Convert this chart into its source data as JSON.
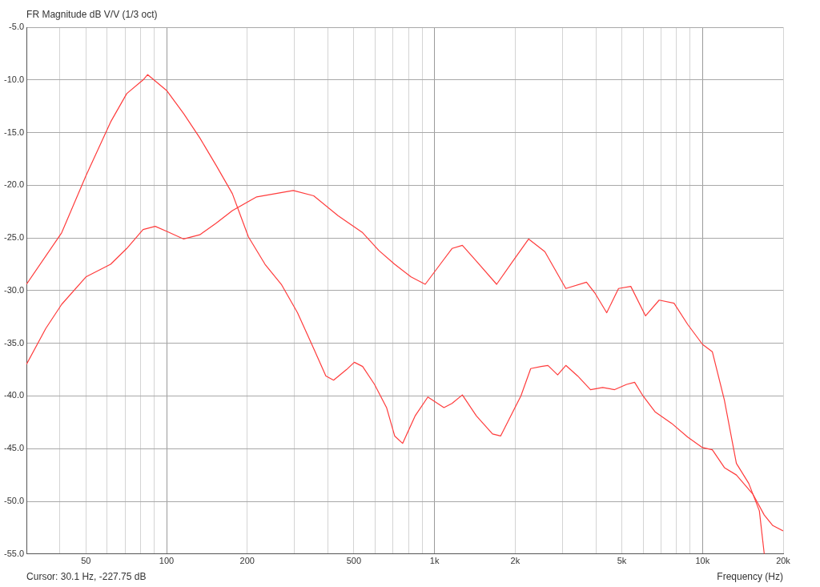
{
  "chart_data": {
    "type": "line",
    "title": "FR Magnitude dB V/V (1/3 oct)",
    "xlabel": "Frequency (Hz)",
    "log": "x",
    "grid": true,
    "xlim": [
      30,
      20000
    ],
    "ylim": [
      -55,
      -5
    ],
    "xticks": [
      {
        "value": 40,
        "label": null
      },
      {
        "value": 50,
        "label": "50"
      },
      {
        "value": 60,
        "label": null
      },
      {
        "value": 70,
        "label": null
      },
      {
        "value": 80,
        "label": null
      },
      {
        "value": 90,
        "label": null
      },
      {
        "value": 100,
        "label": "100"
      },
      {
        "value": 200,
        "label": "200"
      },
      {
        "value": 300,
        "label": null
      },
      {
        "value": 400,
        "label": null
      },
      {
        "value": 500,
        "label": "500"
      },
      {
        "value": 600,
        "label": null
      },
      {
        "value": 700,
        "label": null
      },
      {
        "value": 800,
        "label": null
      },
      {
        "value": 900,
        "label": null
      },
      {
        "value": 1000,
        "label": "1k"
      },
      {
        "value": 2000,
        "label": "2k"
      },
      {
        "value": 3000,
        "label": null
      },
      {
        "value": 4000,
        "label": null
      },
      {
        "value": 5000,
        "label": "5k"
      },
      {
        "value": 6000,
        "label": null
      },
      {
        "value": 7000,
        "label": null
      },
      {
        "value": 8000,
        "label": null
      },
      {
        "value": 9000,
        "label": null
      },
      {
        "value": 10000,
        "label": "10k"
      },
      {
        "value": 20000,
        "label": "20k"
      }
    ],
    "yticks": [
      {
        "value": -5,
        "label": "-5.0"
      },
      {
        "value": -10,
        "label": "-10.0"
      },
      {
        "value": -15,
        "label": "-15.0"
      },
      {
        "value": -20,
        "label": "-20.0"
      },
      {
        "value": -25,
        "label": "-25.0"
      },
      {
        "value": -30,
        "label": "-30.0"
      },
      {
        "value": -35,
        "label": "-35.0"
      },
      {
        "value": -40,
        "label": "-40.0"
      },
      {
        "value": -45,
        "label": "-45.0"
      },
      {
        "value": -50,
        "label": "-50.0"
      },
      {
        "value": -55,
        "label": "-55.0"
      }
    ],
    "annotations": [
      "Cursor: 30.1 Hz, -227.75 dB"
    ],
    "series": [
      {
        "color": "#ff3c3c",
        "x": [
          30,
          40.6,
          50,
          61.8,
          71,
          81.7,
          85,
          100,
          115.8,
          133,
          153,
          176,
          202,
          233,
          268,
          308,
          354,
          393,
          420,
          469,
          502,
          539,
          597,
          662,
          710,
          760,
          846,
          944,
          1084,
          1162,
          1270,
          1433,
          1646,
          1764,
          1960,
          2100,
          2285,
          2500,
          2650,
          2880,
          3090,
          3420,
          3820,
          4240,
          4700,
          5210,
          5580,
          6000,
          6650,
          7670,
          8800,
          10000,
          10880,
          12070,
          13380,
          15400,
          17000,
          18300,
          20000
        ],
        "values": [
          -29.4,
          -24.5,
          -19.1,
          -14,
          -11.3,
          -10,
          -9.5,
          -11,
          -13.2,
          -15.5,
          -18.1,
          -20.8,
          -24.9,
          -27.5,
          -29.4,
          -32.1,
          -35.5,
          -38.1,
          -38.5,
          -37.5,
          -36.8,
          -37.2,
          -38.9,
          -41.1,
          -43.8,
          -44.5,
          -41.9,
          -40.1,
          -41.1,
          -40.7,
          -39.9,
          -41.9,
          -43.6,
          -43.8,
          -41.5,
          -40,
          -37.4,
          -37.2,
          -37.1,
          -38,
          -37.1,
          -38.1,
          -39.4,
          -39.2,
          -39.4,
          -38.9,
          -38.7,
          -40,
          -41.5,
          -42.6,
          -43.9,
          -44.9,
          -45.1,
          -46.8,
          -47.5,
          -49.3,
          -51.3,
          -52.3,
          -52.8
        ]
      },
      {
        "color": "#ff3c3c",
        "x": [
          30,
          35.4,
          40.6,
          50,
          61.8,
          71,
          81.7,
          90.7,
          100.7,
          115.8,
          133,
          153,
          176,
          217,
          297,
          354,
          437,
          539,
          620,
          710,
          817,
          923,
          1050,
          1162,
          1270,
          1433,
          1705,
          1960,
          2245,
          2580,
          3090,
          3690,
          3960,
          4390,
          4860,
          5400,
          6130,
          6890,
          7830,
          8800,
          10000,
          10880,
          12070,
          13380,
          14880,
          16300,
          17000
        ],
        "values": [
          -37,
          -33.6,
          -31.3,
          -28.7,
          -27.5,
          -26,
          -24.2,
          -23.9,
          -24.4,
          -25.1,
          -24.7,
          -23.6,
          -22.4,
          -21.1,
          -20.5,
          -21,
          -22.9,
          -24.5,
          -26.2,
          -27.5,
          -28.7,
          -29.4,
          -27.5,
          -26,
          -25.7,
          -27.2,
          -29.4,
          -27.2,
          -25.1,
          -26.3,
          -29.8,
          -29.2,
          -30.2,
          -32.1,
          -29.8,
          -29.6,
          -32.4,
          -30.9,
          -31.2,
          -33.2,
          -35.1,
          -35.8,
          -40.4,
          -46.4,
          -48.3,
          -50.9,
          -55
        ]
      }
    ]
  }
}
